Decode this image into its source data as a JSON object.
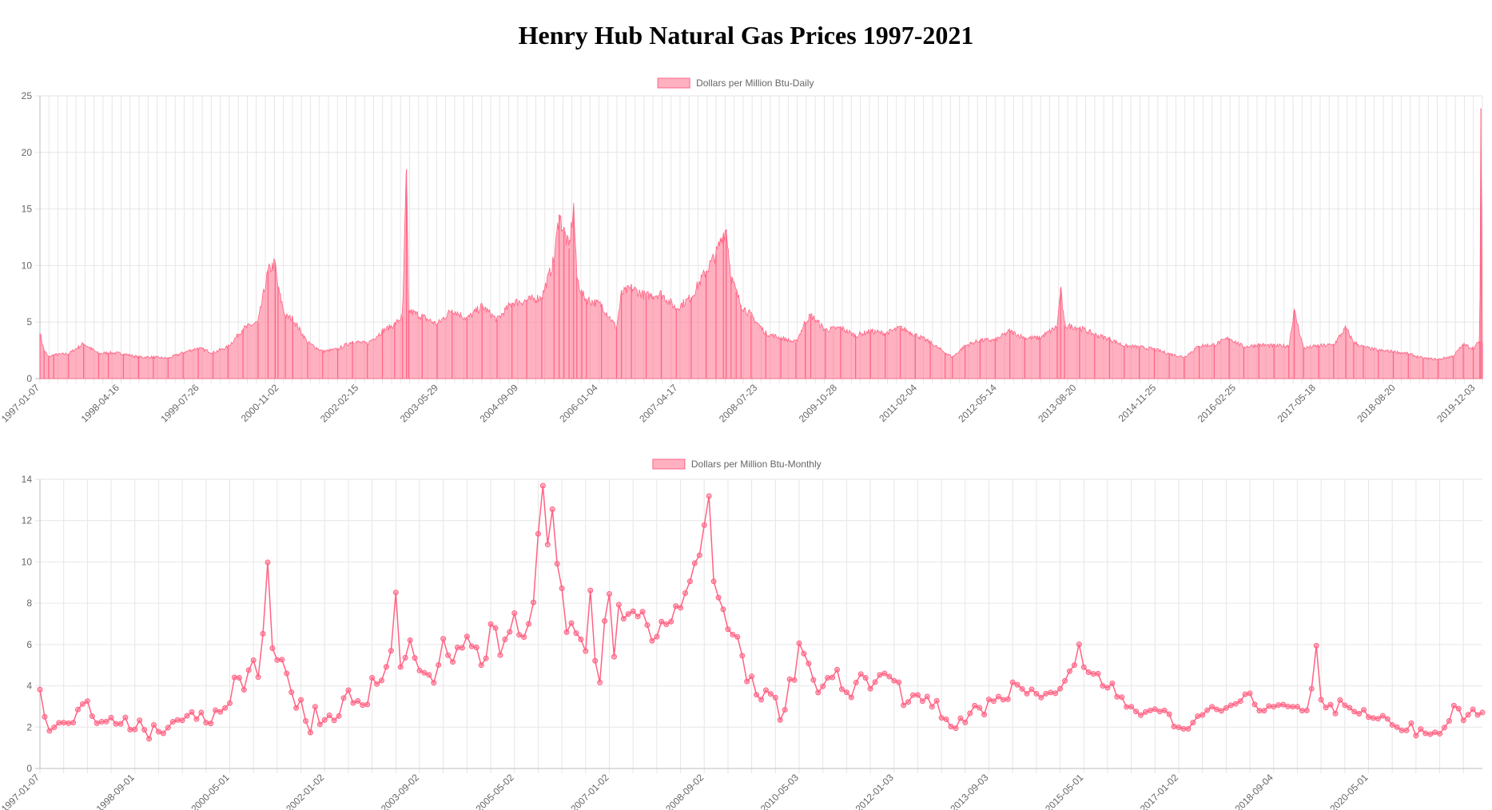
{
  "title": "Henry Hub Natural Gas Prices 1997-2021",
  "colors": {
    "fill": "#ff6384",
    "fill_soft": "rgba(255,99,132,0.5)",
    "grid": "#e6e6e6",
    "text": "#666666"
  },
  "chart_data": [
    {
      "type": "bar",
      "legend": "Dollars per Million Btu-Daily",
      "legend_position": "top",
      "grid": true,
      "ylim": [
        0,
        25
      ],
      "yticks": [
        0,
        5,
        10,
        15,
        20,
        25
      ],
      "xlim": [
        "1997-01-07",
        "2021-02-26"
      ],
      "xtick_labels": [
        "1997-01-07",
        "1998-04-16",
        "1999-07-26",
        "2000-11-02",
        "2002-02-15",
        "2003-05-29",
        "2004-09-09",
        "2006-01-04",
        "2007-04-17",
        "2008-07-23",
        "2009-10-28",
        "2011-02-04",
        "2012-05-14",
        "2013-08-20",
        "2014-11-25",
        "2016-02-25",
        "2017-05-18",
        "2018-08-20",
        "2019-12-03"
      ],
      "x": [
        "1997-01-07",
        "1997-02-01",
        "1997-03-01",
        "1997-04-01",
        "1997-07-01",
        "1997-10-01",
        "1998-01-01",
        "1998-03-01",
        "1998-06-01",
        "1998-09-01",
        "1998-12-01",
        "1999-03-01",
        "1999-06-01",
        "1999-09-01",
        "1999-12-01",
        "2000-03-01",
        "2000-06-01",
        "2000-09-01",
        "2000-11-01",
        "2000-12-15",
        "2001-01-01",
        "2001-02-15",
        "2001-04-01",
        "2001-07-01",
        "2001-10-01",
        "2002-01-01",
        "2002-04-01",
        "2002-07-01",
        "2002-10-01",
        "2002-12-15",
        "2003-02-01",
        "2003-02-25",
        "2003-03-10",
        "2003-06-01",
        "2003-09-01",
        "2003-12-01",
        "2004-03-01",
        "2004-06-01",
        "2004-09-01",
        "2004-12-01",
        "2005-03-01",
        "2005-06-01",
        "2005-08-15",
        "2005-09-15",
        "2005-10-15",
        "2005-11-15",
        "2005-12-13",
        "2006-01-01",
        "2006-02-01",
        "2006-03-01",
        "2006-06-01",
        "2006-09-01",
        "2006-10-01",
        "2006-12-01",
        "2007-03-01",
        "2007-06-01",
        "2007-09-01",
        "2007-12-01",
        "2008-03-01",
        "2008-05-01",
        "2008-06-15",
        "2008-07-03",
        "2008-08-01",
        "2008-09-01",
        "2008-10-01",
        "2008-12-01",
        "2009-03-01",
        "2009-06-01",
        "2009-09-01",
        "2009-10-28",
        "2009-12-01",
        "2010-03-01",
        "2010-06-01",
        "2010-09-01",
        "2010-12-01",
        "2011-03-01",
        "2011-06-01",
        "2011-09-01",
        "2011-12-01",
        "2012-03-01",
        "2012-04-15",
        "2012-07-01",
        "2012-10-01",
        "2013-01-01",
        "2013-04-01",
        "2013-07-01",
        "2013-10-01",
        "2014-01-15",
        "2014-02-05",
        "2014-03-01",
        "2014-06-01",
        "2014-09-01",
        "2014-12-01",
        "2015-03-01",
        "2015-06-01",
        "2015-09-01",
        "2015-12-01",
        "2016-03-01",
        "2016-06-01",
        "2016-09-01",
        "2016-12-01",
        "2017-03-01",
        "2017-06-01",
        "2017-09-01",
        "2017-12-01",
        "2018-01-03",
        "2018-03-01",
        "2018-06-01",
        "2018-09-01",
        "2018-11-14",
        "2019-01-01",
        "2019-03-01",
        "2019-06-01",
        "2019-09-01",
        "2019-12-01",
        "2020-03-01",
        "2020-06-01",
        "2020-09-01",
        "2020-11-01",
        "2021-01-01",
        "2021-02-10",
        "2021-02-17",
        "2021-02-26"
      ],
      "values": [
        4.0,
        2.5,
        1.9,
        2.1,
        2.2,
        3.1,
        2.2,
        2.3,
        2.2,
        1.9,
        1.9,
        1.8,
        2.3,
        2.7,
        2.3,
        2.8,
        4.4,
        5.0,
        9.5,
        10.2,
        8.0,
        5.5,
        5.3,
        3.2,
        2.4,
        2.6,
        3.3,
        3.1,
        4.2,
        4.8,
        5.5,
        18.5,
        6.0,
        5.5,
        4.8,
        6.1,
        5.3,
        6.4,
        5.2,
        6.7,
        6.9,
        7.2,
        10.5,
        14.5,
        13.0,
        11.5,
        15.2,
        9.0,
        7.5,
        7.0,
        6.5,
        4.5,
        7.5,
        8.0,
        7.3,
        7.5,
        6.2,
        7.2,
        9.5,
        11.0,
        12.8,
        13.2,
        9.0,
        7.7,
        6.5,
        5.6,
        4.0,
        3.6,
        3.2,
        5.0,
        5.6,
        4.3,
        4.5,
        3.8,
        4.2,
        4.0,
        4.5,
        3.9,
        3.2,
        2.3,
        1.9,
        2.9,
        3.4,
        3.4,
        4.2,
        3.6,
        3.6,
        4.6,
        8.0,
        4.7,
        4.5,
        3.9,
        3.5,
        2.9,
        2.8,
        2.6,
        2.2,
        1.9,
        2.9,
        3.0,
        3.6,
        2.8,
        3.0,
        2.9,
        2.9,
        6.0,
        2.7,
        2.9,
        3.0,
        4.5,
        3.2,
        2.8,
        2.5,
        2.4,
        2.2,
        1.8,
        1.7,
        2.0,
        3.0,
        2.7,
        3.3,
        23.9,
        3.2
      ]
    },
    {
      "type": "line",
      "legend": "Dollars per Million Btu-Monthly",
      "legend_position": "top",
      "grid": true,
      "ylim": [
        0,
        14
      ],
      "yticks": [
        0,
        2,
        4,
        6,
        8,
        10,
        12,
        14
      ],
      "xtick_labels": [
        "1997-01-07",
        "1998-09-01",
        "2000-05-01",
        "2002-01-02",
        "2003-09-02",
        "2005-05-02",
        "2007-01-02",
        "2008-09-02",
        "2010-05-03",
        "2012-01-03",
        "2013-09-03",
        "2015-05-01",
        "2017-01-02",
        "2018-09-04",
        "2020-05-01"
      ],
      "xtick_index": [
        0,
        20,
        40,
        60,
        80,
        100,
        120,
        140,
        160,
        180,
        200,
        220,
        240,
        260,
        280
      ],
      "values": [
        3.82,
        2.5,
        1.82,
        1.99,
        2.21,
        2.22,
        2.19,
        2.22,
        2.85,
        3.12,
        3.26,
        2.53,
        2.19,
        2.26,
        2.27,
        2.46,
        2.16,
        2.16,
        2.47,
        1.88,
        1.89,
        2.33,
        1.87,
        1.44,
        2.11,
        1.78,
        1.7,
        1.98,
        2.26,
        2.35,
        2.33,
        2.55,
        2.73,
        2.39,
        2.71,
        2.22,
        2.18,
        2.82,
        2.74,
        2.93,
        3.16,
        4.41,
        4.39,
        3.81,
        4.76,
        5.24,
        4.42,
        6.52,
        9.98,
        5.82,
        5.25,
        5.27,
        4.6,
        3.69,
        2.93,
        3.32,
        2.3,
        1.74,
        2.99,
        2.13,
        2.35,
        2.57,
        2.33,
        2.54,
        3.41,
        3.79,
        3.17,
        3.27,
        3.07,
        3.1,
        4.39,
        4.09,
        4.26,
        4.92,
        5.7,
        8.52,
        4.91,
        5.36,
        6.21,
        5.35,
        4.74,
        4.63,
        4.53,
        4.15,
        5.01,
        6.28,
        5.48,
        5.16,
        5.86,
        5.84,
        6.39,
        5.91,
        5.86,
        5.0,
        5.33,
        6.99,
        6.8,
        5.49,
        6.25,
        6.61,
        7.52,
        6.47,
        6.36,
        7.0,
        8.04,
        11.36,
        13.69,
        10.84,
        12.55,
        9.91,
        8.72,
        6.6,
        7.04,
        6.55,
        6.25,
        5.68,
        8.62,
        5.21,
        4.16,
        7.14,
        8.45,
        5.41,
        7.93,
        7.25,
        7.48,
        7.61,
        7.36,
        7.59,
        6.94,
        6.18,
        6.38,
        7.11,
        6.98,
        7.11,
        7.86,
        7.78,
        8.49,
        9.06,
        9.94,
        10.32,
        11.78,
        13.19,
        9.06,
        8.27,
        7.7,
        6.74,
        6.48,
        6.37,
        5.46,
        4.21,
        4.46,
        3.57,
        3.33,
        3.79,
        3.61,
        3.43,
        2.35,
        2.84,
        4.32,
        4.28,
        6.06,
        5.56,
        5.08,
        4.29,
        3.68,
        3.98,
        4.39,
        4.41,
        4.78,
        3.84,
        3.69,
        3.44,
        4.16,
        4.57,
        4.39,
        3.86,
        4.18,
        4.53,
        4.6,
        4.45,
        4.25,
        4.17,
        3.06,
        3.22,
        3.55,
        3.56,
        3.26,
        3.48,
        2.99,
        3.28,
        2.45,
        2.38,
        2.03,
        1.95,
        2.43,
        2.23,
        2.67,
        3.04,
        2.94,
        2.61,
        3.34,
        3.26,
        3.48,
        3.33,
        3.35,
        4.17,
        4.05,
        3.85,
        3.62,
        3.83,
        3.62,
        3.43,
        3.62,
        3.68,
        3.64,
        3.86,
        4.24,
        4.71,
        5.0,
        6.01,
        4.9,
        4.66,
        4.58,
        4.59,
        4.0,
        3.91,
        4.12,
        3.47,
        3.45,
        2.98,
        2.99,
        2.76,
        2.58,
        2.73,
        2.81,
        2.87,
        2.76,
        2.81,
        2.63,
        2.03,
        1.99,
        1.92,
        1.92,
        2.22,
        2.53,
        2.59,
        2.82,
        2.99,
        2.86,
        2.79,
        2.93,
        3.06,
        3.13,
        3.26,
        3.59,
        3.64,
        3.1,
        2.8,
        2.8,
        3.02,
        2.99,
        3.07,
        3.09,
        3.0,
        2.99,
        2.99,
        2.8,
        2.81,
        3.86,
        5.94,
        3.33,
        2.95,
        3.09,
        2.66,
        3.31,
        3.06,
        2.94,
        2.75,
        2.65,
        2.84,
        2.49,
        2.44,
        2.41,
        2.55,
        2.4,
        2.11,
        2.0,
        1.84,
        1.84,
        2.19,
        1.59,
        1.91,
        1.7,
        1.66,
        1.75,
        1.68,
        1.98,
        2.3,
        3.04,
        2.89,
        2.33,
        2.6,
        2.86,
        2.59,
        2.71
      ],
      "title": "",
      "xlabel": "",
      "ylabel": ""
    }
  ]
}
